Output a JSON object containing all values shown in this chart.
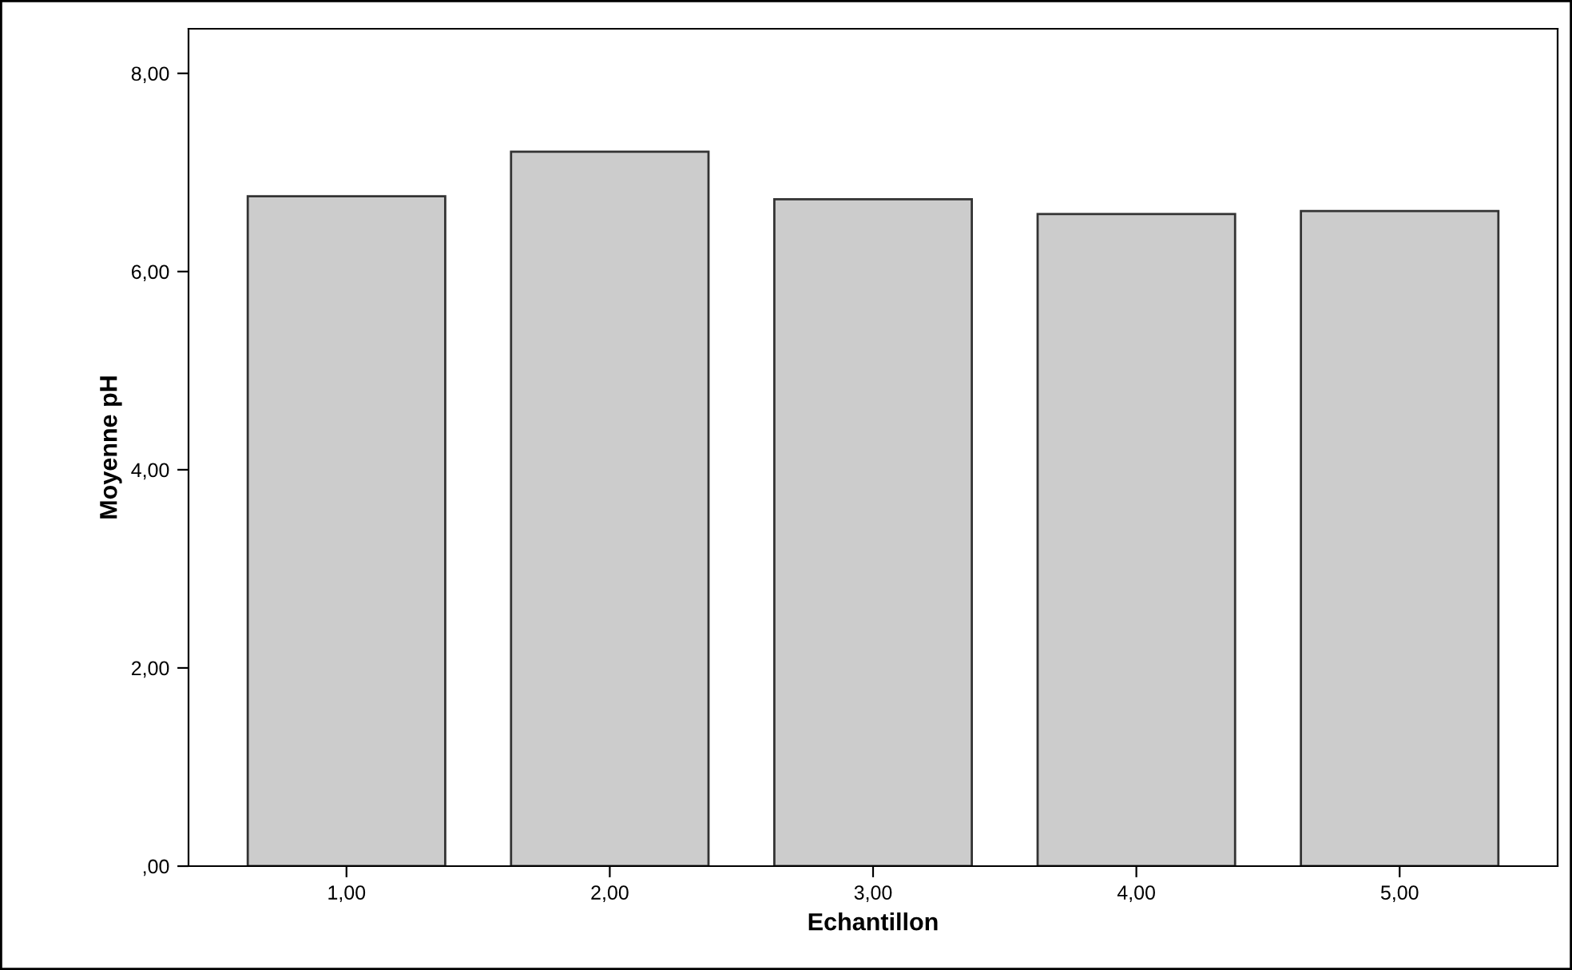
{
  "chart_data": {
    "type": "bar",
    "xlabel": "Echantillon",
    "ylabel": "Moyenne pH",
    "categories": [
      "1,00",
      "2,00",
      "3,00",
      "4,00",
      "5,00"
    ],
    "values": [
      6.76,
      7.21,
      6.73,
      6.58,
      6.61
    ],
    "color": "#cccccc",
    "ylim": [
      0,
      8.45
    ],
    "yticks": [
      {
        "value": 0,
        "label": ",00"
      },
      {
        "value": 2,
        "label": "2,00"
      },
      {
        "value": 4,
        "label": "4,00"
      },
      {
        "value": 6,
        "label": "6,00"
      },
      {
        "value": 8,
        "label": "8,00"
      }
    ],
    "grid": false,
    "legend": false
  }
}
